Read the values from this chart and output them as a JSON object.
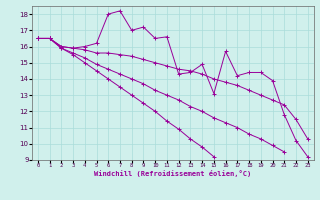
{
  "x": [
    0,
    1,
    2,
    3,
    4,
    5,
    6,
    7,
    8,
    9,
    10,
    11,
    12,
    13,
    14,
    15,
    16,
    17,
    18,
    19,
    20,
    21,
    22,
    23
  ],
  "line1": [
    16.5,
    16.5,
    16.0,
    15.9,
    16.0,
    16.2,
    18.0,
    18.2,
    17.0,
    17.2,
    16.5,
    16.6,
    14.3,
    14.4,
    14.9,
    13.1,
    15.7,
    14.2,
    14.4,
    14.4,
    13.9,
    11.8,
    10.2,
    9.2
  ],
  "line2": [
    16.5,
    16.5,
    16.0,
    15.9,
    15.8,
    15.6,
    15.6,
    15.5,
    15.4,
    15.2,
    15.0,
    14.8,
    14.6,
    14.5,
    14.3,
    14.0,
    13.8,
    13.6,
    13.3,
    13.0,
    12.7,
    12.4,
    11.5,
    10.3
  ],
  "line3": [
    16.5,
    16.5,
    15.9,
    15.6,
    15.3,
    14.9,
    14.6,
    14.3,
    14.0,
    13.7,
    13.3,
    13.0,
    12.7,
    12.3,
    12.0,
    11.6,
    11.3,
    11.0,
    10.6,
    10.3,
    9.9,
    9.5,
    null,
    null
  ],
  "line4": [
    16.5,
    16.5,
    15.9,
    15.5,
    15.0,
    14.5,
    14.0,
    13.5,
    13.0,
    12.5,
    12.0,
    11.4,
    10.9,
    10.3,
    9.8,
    9.2,
    null,
    null,
    null,
    null,
    null,
    null,
    null,
    null
  ],
  "line_color": "#990099",
  "bg_color": "#d0f0ec",
  "grid_color": "#aaddda",
  "ylim": [
    9,
    18.5
  ],
  "xlim": [
    -0.5,
    23.5
  ],
  "yticks": [
    9,
    10,
    11,
    12,
    13,
    14,
    15,
    16,
    17,
    18
  ],
  "xtick_labels": [
    "0",
    "1",
    "2",
    "3",
    "4",
    "5",
    "6",
    "7",
    "8",
    "9",
    "10",
    "11",
    "12",
    "13",
    "14",
    "15",
    "16",
    "17",
    "18",
    "19",
    "20",
    "21",
    "22",
    "23"
  ],
  "xlabel": "Windchill (Refroidissement éolien,°C)"
}
